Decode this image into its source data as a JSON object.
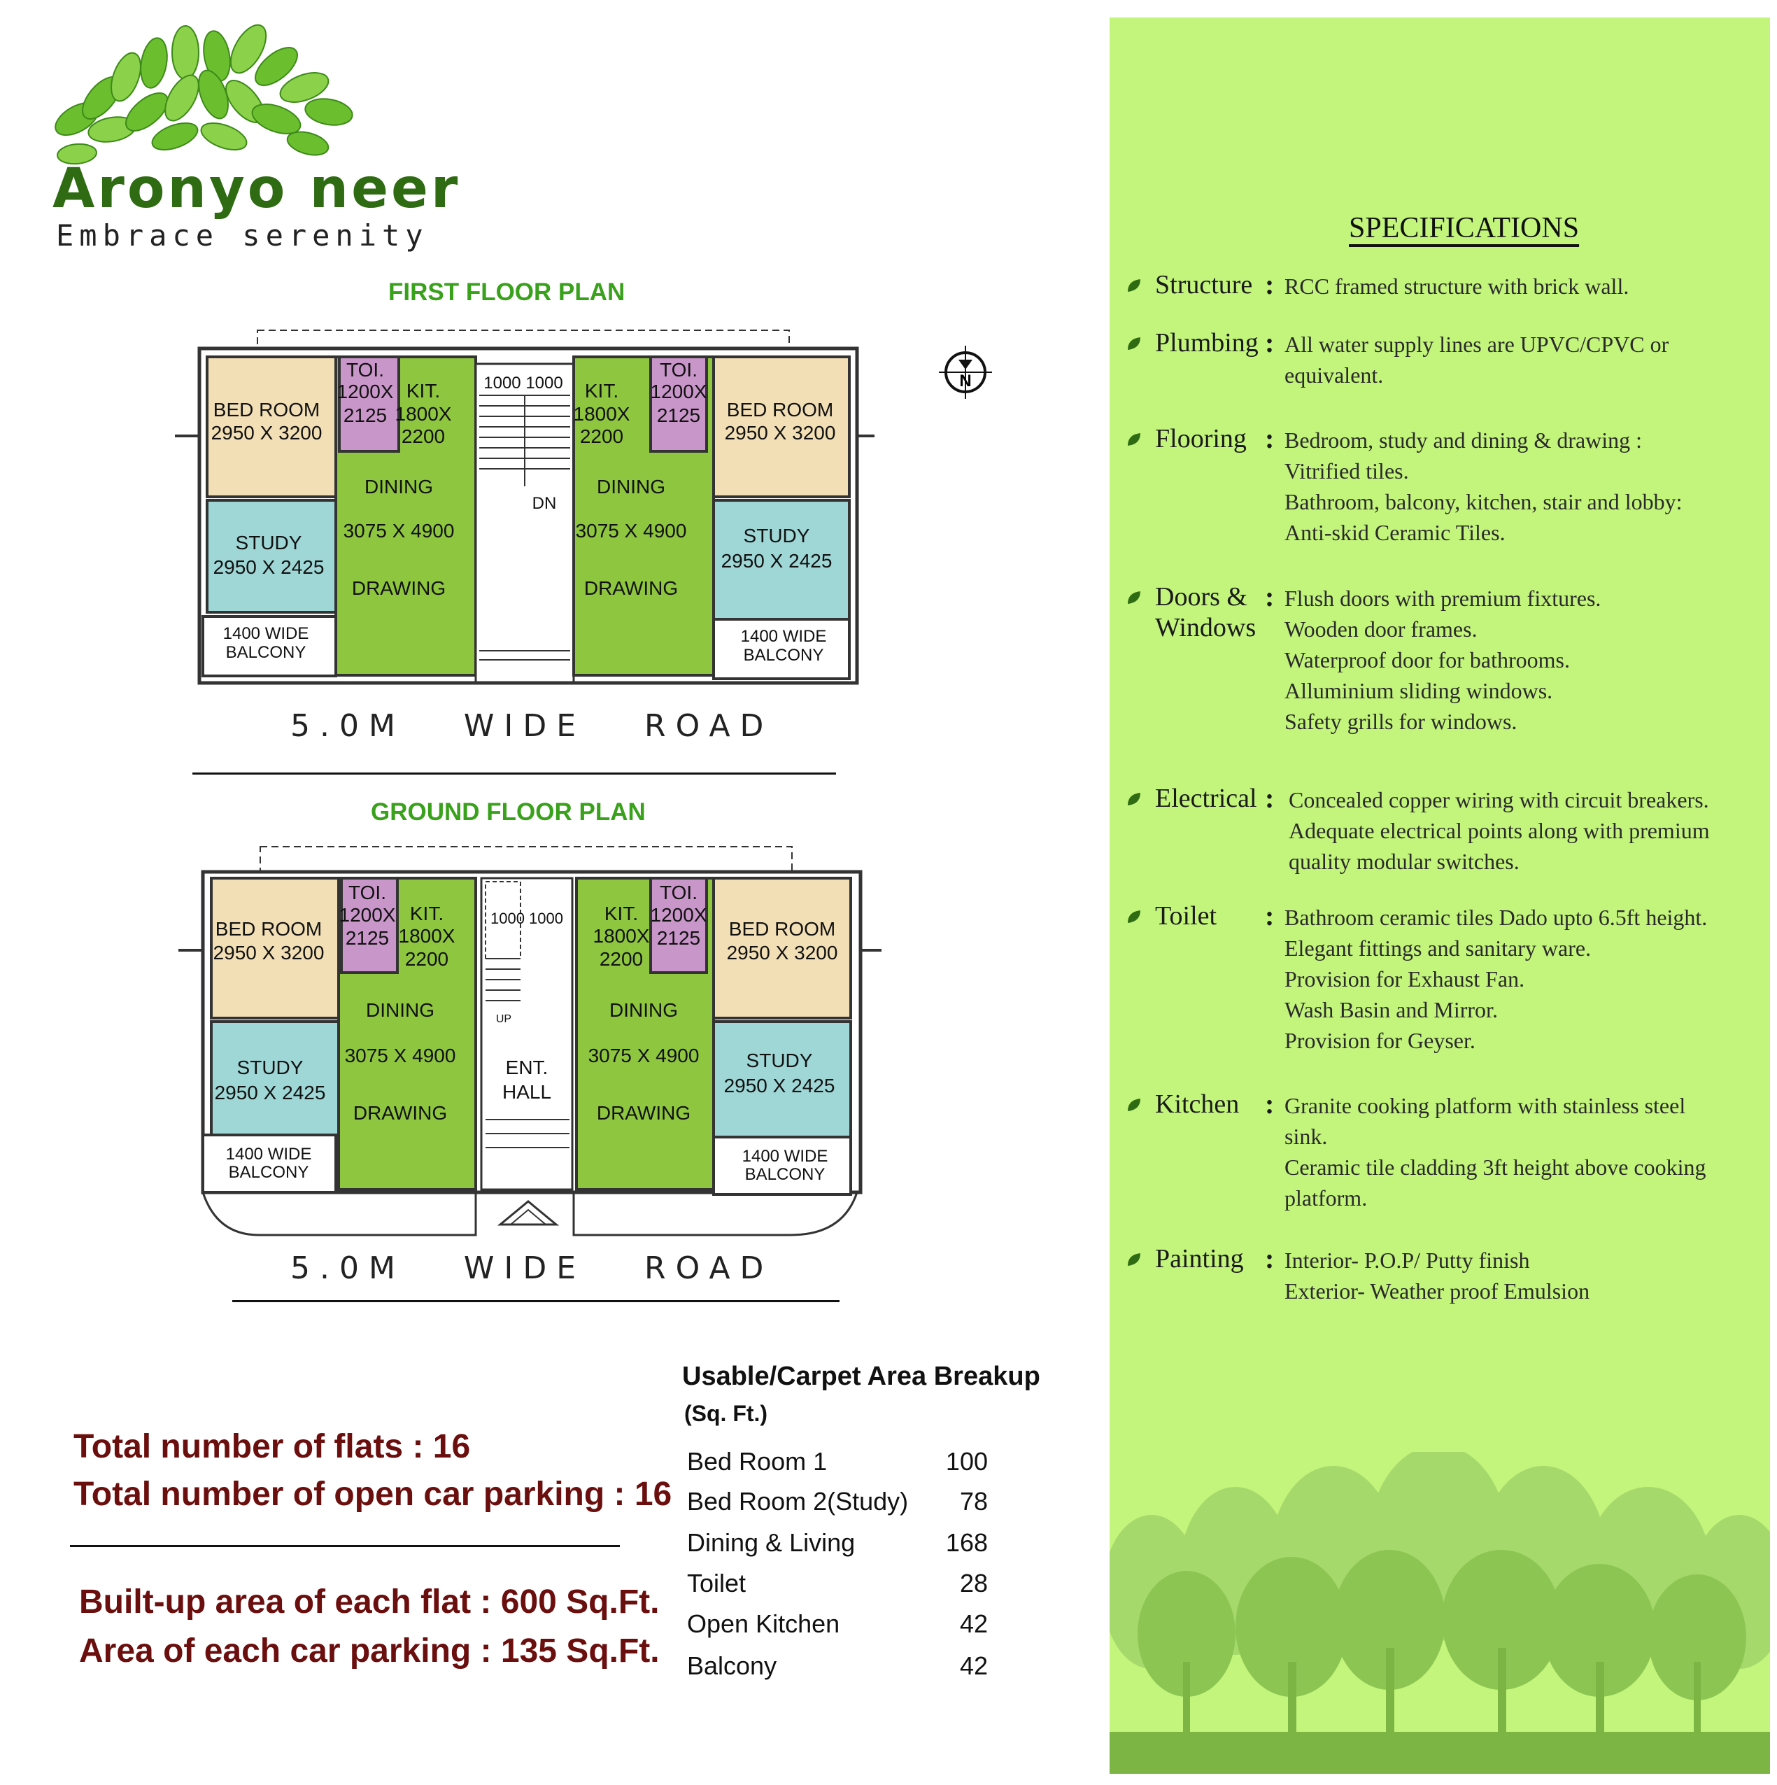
{
  "logo": {
    "brand": "Aronyo neer",
    "tagline": "Embrace serenity"
  },
  "first_floor": {
    "title": "FIRST FLOOR PLAN",
    "road": "5.0M   WIDE   ROAD",
    "stair_label": "DN",
    "stair_widths": "1000 1000",
    "left": {
      "bed": "BED ROOM",
      "bed_dim": "2950 X 3200",
      "toi": "TOI.",
      "toi_dim1": "1200X",
      "toi_dim2": "2125",
      "kit": "KIT.",
      "kit_dim1": "1800X",
      "kit_dim2": "2200",
      "dining": "DINING",
      "dining_dim": "3075 X 4900",
      "drawing": "DRAWING",
      "study": "STUDY",
      "study_dim": "2950 X 2425",
      "balcony1": "1400  WIDE",
      "balcony2": "BALCONY"
    },
    "right": {
      "bed": "BED ROOM",
      "bed_dim": "2950 X 3200",
      "toi": "TOI.",
      "toi_dim1": "1200X",
      "toi_dim2": "2125",
      "kit": "KIT.",
      "kit_dim1": "1800X",
      "kit_dim2": "2200",
      "dining": "DINING",
      "dining_dim": "3075 X 4900",
      "drawing": "DRAWING",
      "study": "STUDY",
      "study_dim": "2950 X 2425",
      "balcony1": "1400  WIDE",
      "balcony2": "BALCONY"
    }
  },
  "ground_floor": {
    "title": "GROUND FLOOR PLAN",
    "road": "5.0M   WIDE   ROAD",
    "stair_label": "UP",
    "stair_widths": "1000 1000",
    "ent1": "ENT.",
    "ent2": "HALL",
    "left": {
      "bed": "BED ROOM",
      "bed_dim": "2950 X 3200",
      "toi": "TOI.",
      "toi_dim1": "1200X",
      "toi_dim2": "2125",
      "kit": "KIT.",
      "kit_dim1": "1800X",
      "kit_dim2": "2200",
      "dining": "DINING",
      "dining_dim": "3075 X 4900",
      "drawing": "DRAWING",
      "study": "STUDY",
      "study_dim": "2950 X 2425",
      "balcony1": "1400  WIDE",
      "balcony2": "BALCONY"
    },
    "right": {
      "bed": "BED ROOM",
      "bed_dim": "2950 X 3200",
      "toi": "TOI.",
      "toi_dim1": "1200X",
      "toi_dim2": "2125",
      "kit": "KIT.",
      "kit_dim1": "1800X",
      "kit_dim2": "2200",
      "dining": "DINING",
      "dining_dim": "3075 X 4900",
      "drawing": "DRAWING",
      "study": "STUDY",
      "study_dim": "2950 X 2425",
      "balcony1": "1400  WIDE",
      "balcony2": "BALCONY"
    }
  },
  "compass": {
    "label": "N"
  },
  "totals": {
    "flats": "Total number of flats : 16",
    "parking": "Total number of open car parking : 16",
    "builtup": "Built-up area of each flat : 600 Sq.Ft.",
    "car_area": "Area of each car parking : 135 Sq.Ft."
  },
  "carpet_area": {
    "title": "Usable/Carpet Area Breakup",
    "unit": "(Sq. Ft.)",
    "rows": [
      {
        "label": "Bed Room 1",
        "value": "100"
      },
      {
        "label": "Bed Room 2(Study)",
        "value": "78"
      },
      {
        "label": "Dining & Living",
        "value": "168"
      },
      {
        "label": "Toilet",
        "value": "28"
      },
      {
        "label": "Open Kitchen",
        "value": "42"
      },
      {
        "label": "Balcony",
        "value": "42"
      }
    ]
  },
  "specifications": {
    "heading": "SPECIFICATIONS",
    "items": [
      {
        "label": "Structure",
        "lines": [
          "RCC framed structure with brick wall."
        ]
      },
      {
        "label": "Plumbing",
        "lines": [
          "All water supply lines are UPVC/CPVC or",
          "equivalent."
        ]
      },
      {
        "label": "Flooring",
        "lines": [
          "Bedroom, study and dining & drawing :",
          "Vitrified tiles.",
          "Bathroom, balcony, kitchen, stair and lobby:",
          "Anti-skid Ceramic Tiles."
        ]
      },
      {
        "label": "Doors &",
        "label2": "Windows",
        "lines": [
          "Flush doors with premium fixtures.",
          "Wooden door frames.",
          "Waterproof door for bathrooms.",
          "Alluminium sliding windows.",
          "Safety grills for windows."
        ]
      },
      {
        "label": "Electrical",
        "lines": [
          "Concealed copper wiring with circuit breakers.",
          "Adequate electrical points along with premium",
          "quality modular switches."
        ]
      },
      {
        "label": "Toilet",
        "lines": [
          "Bathroom ceramic tiles Dado upto 6.5ft height.",
          "Elegant fittings and sanitary ware.",
          "Provision for Exhaust Fan.",
          "Wash Basin and Mirror.",
          "Provision for Geyser."
        ]
      },
      {
        "label": "Kitchen",
        "lines": [
          "Granite cooking platform with stainless steel",
          "sink.",
          "Ceramic tile cladding 3ft height above cooking",
          "platform."
        ]
      },
      {
        "label": "Painting",
        "lines": [
          "Interior- P.O.P/ Putty finish",
          "Exterior- Weather proof Emulsion"
        ]
      }
    ]
  },
  "colors": {
    "panel_bg": "#c3f57c",
    "bed": "#f2dfb5",
    "study": "#9fd6d6",
    "toilet": "#c896c8",
    "dining": "#8fc640",
    "heading_green": "#3aa11c",
    "totals_maroon": "#6b0e0e"
  }
}
